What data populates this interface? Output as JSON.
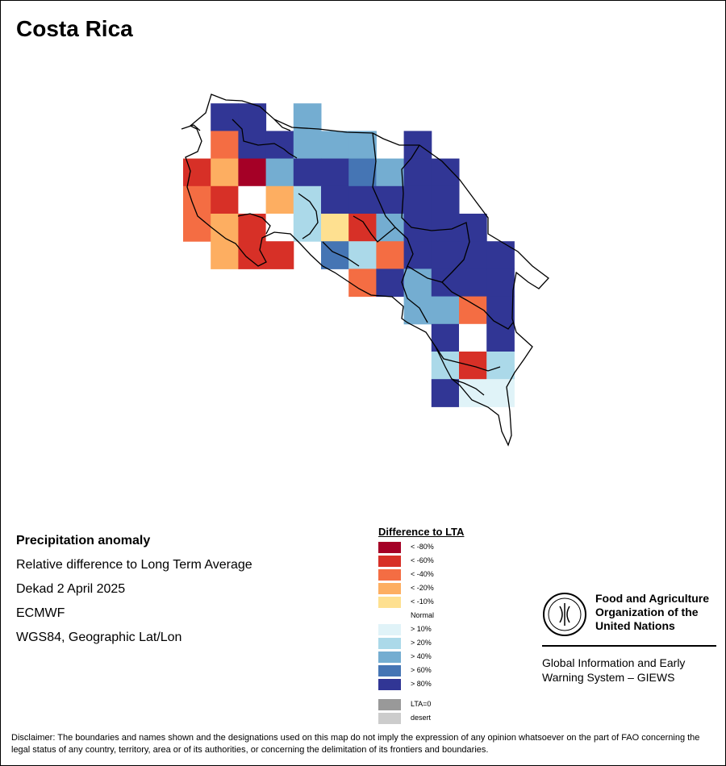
{
  "title": "Costa Rica",
  "info": {
    "heading": "Precipitation anomaly",
    "lines": [
      "Relative difference to Long Term Average",
      "Dekad 2 April 2025",
      "ECMWF",
      "WGS84, Geographic Lat/Lon"
    ]
  },
  "legend": {
    "title": "Difference to LTA",
    "classes": [
      {
        "label": "< -80%",
        "color": "#a50026"
      },
      {
        "label": "< -60%",
        "color": "#d73027"
      },
      {
        "label": "< -40%",
        "color": "#f46d43"
      },
      {
        "label": "< -20%",
        "color": "#fdae61"
      },
      {
        "label": "< -10%",
        "color": "#fee090"
      },
      {
        "label": "Normal",
        "color": "#ffffff"
      },
      {
        "label": "> 10%",
        "color": "#e0f3f8"
      },
      {
        "label": "> 20%",
        "color": "#abd9e9"
      },
      {
        "label": "> 40%",
        "color": "#74add1"
      },
      {
        "label": "> 60%",
        "color": "#4575b4"
      },
      {
        "label": "> 80%",
        "color": "#313695"
      }
    ],
    "extra": [
      {
        "label": "LTA=0",
        "color": "#999999"
      },
      {
        "label": "desert",
        "color": "#cccccc"
      }
    ]
  },
  "org": {
    "name_lines": [
      "Food and Agriculture",
      "Organization of the",
      "United Nations"
    ],
    "logo_text": "FAO",
    "logo_motto": "FIAT PANIS",
    "giews_lines": [
      "Global Information and Early",
      "Warning System – GIEWS"
    ]
  },
  "disclaimer": "Disclaimer: The boundaries and names shown and the designations used on this map do not imply the expression of any opinion whatsoever on the part of FAO concerning the legal status of any country, territory, area or of its authorities, or concerning the delimitation of its frontiers and boundaries.",
  "grid": {
    "classes": [
      "-80",
      "-60",
      "-40",
      "-20",
      "-10",
      "normal",
      "10",
      "20",
      "40",
      "60",
      "80"
    ],
    "rows": [
      [
        "",
        "",
        "",
        "",
        "",
        "",
        "",
        "",
        "",
        "",
        "",
        "",
        ""
      ],
      [
        "",
        "80",
        "80",
        "",
        "40",
        "",
        "",
        "",
        "",
        "",
        "",
        "",
        ""
      ],
      [
        "",
        "-40",
        "80",
        "80",
        "40",
        "40",
        "40",
        "",
        "80",
        "",
        "",
        "",
        ""
      ],
      [
        "-60",
        "-20",
        "-80",
        "40",
        "80",
        "80",
        "60",
        "40",
        "80",
        "80",
        "",
        "",
        ""
      ],
      [
        "-40",
        "-60",
        "normal",
        "-20",
        "20",
        "80",
        "80",
        "80",
        "80",
        "80",
        "",
        "",
        ""
      ],
      [
        "-40",
        "-20",
        "-60",
        "normal",
        "20",
        "-10",
        "-60",
        "40",
        "80",
        "80",
        "80",
        "",
        ""
      ],
      [
        "",
        "-20",
        "-60",
        "-60",
        "",
        "60",
        "20",
        "-40",
        "80",
        "80",
        "80",
        "80",
        ""
      ],
      [
        "",
        "",
        "",
        "",
        "",
        "",
        "-40",
        "80",
        "40",
        "80",
        "80",
        "80",
        ""
      ],
      [
        "",
        "",
        "",
        "",
        "",
        "",
        "",
        "",
        "40",
        "40",
        "-40",
        "80",
        ""
      ],
      [
        "",
        "",
        "",
        "",
        "",
        "",
        "",
        "",
        "",
        "80",
        "normal",
        "80",
        ""
      ],
      [
        "",
        "",
        "",
        "",
        "",
        "",
        "",
        "",
        "",
        "20",
        "-60",
        "20",
        ""
      ],
      [
        "",
        "",
        "",
        "",
        "",
        "",
        "",
        "",
        "",
        "80",
        "10",
        "10",
        ""
      ]
    ]
  }
}
